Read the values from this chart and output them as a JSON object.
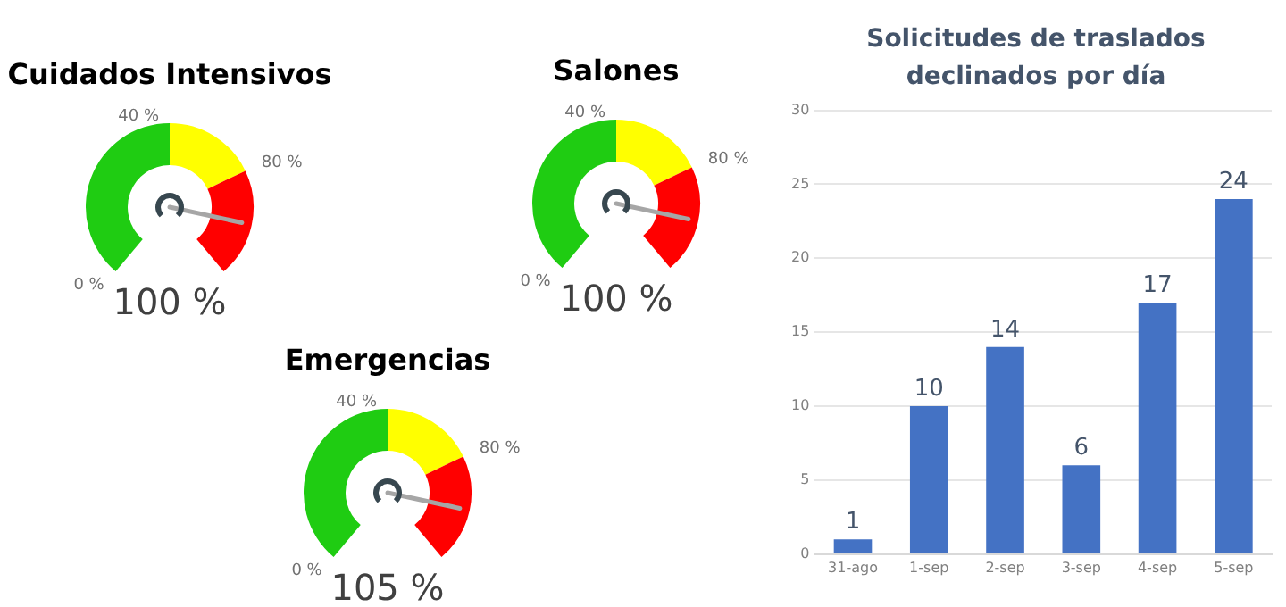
{
  "chart_data": [
    {
      "type": "donut",
      "title": "Cuidados Intensivos",
      "categories": [
        "0 %",
        "40 %",
        "80 %"
      ],
      "values": [
        50,
        23,
        27
      ],
      "colors": [
        "#1fcc12",
        "#ffff00",
        "#ff0000"
      ],
      "needle": "80 %",
      "annotations": [
        "100 %"
      ]
    },
    {
      "type": "donut",
      "title": "Salones",
      "categories": [
        "0 %",
        "40 %",
        "80 %"
      ],
      "values": [
        50,
        23,
        27
      ],
      "colors": [
        "#1fcc12",
        "#ffff00",
        "#ff0000"
      ],
      "needle": "80 %",
      "annotations": [
        "100 %"
      ]
    },
    {
      "type": "donut",
      "title": "Emergencias",
      "categories": [
        "0 %",
        "40 %",
        "80 %"
      ],
      "values": [
        50,
        23,
        27
      ],
      "colors": [
        "#1fcc12",
        "#ffff00",
        "#ff0000"
      ],
      "needle": "80 %",
      "annotations": [
        "105 %"
      ]
    },
    {
      "type": "bar",
      "title": "Solicitudes de traslados declinados por día",
      "categories": [
        "31-ago",
        "1-sep",
        "2-sep",
        "3-sep",
        "4-sep",
        "5-sep"
      ],
      "values": [
        1,
        10,
        14,
        6,
        17,
        24
      ],
      "color": "#4472c4",
      "ylim": [
        0,
        30
      ],
      "yticks": [
        0,
        5,
        10,
        15,
        20,
        25,
        30
      ],
      "grid": "y",
      "data_labels": true
    }
  ]
}
